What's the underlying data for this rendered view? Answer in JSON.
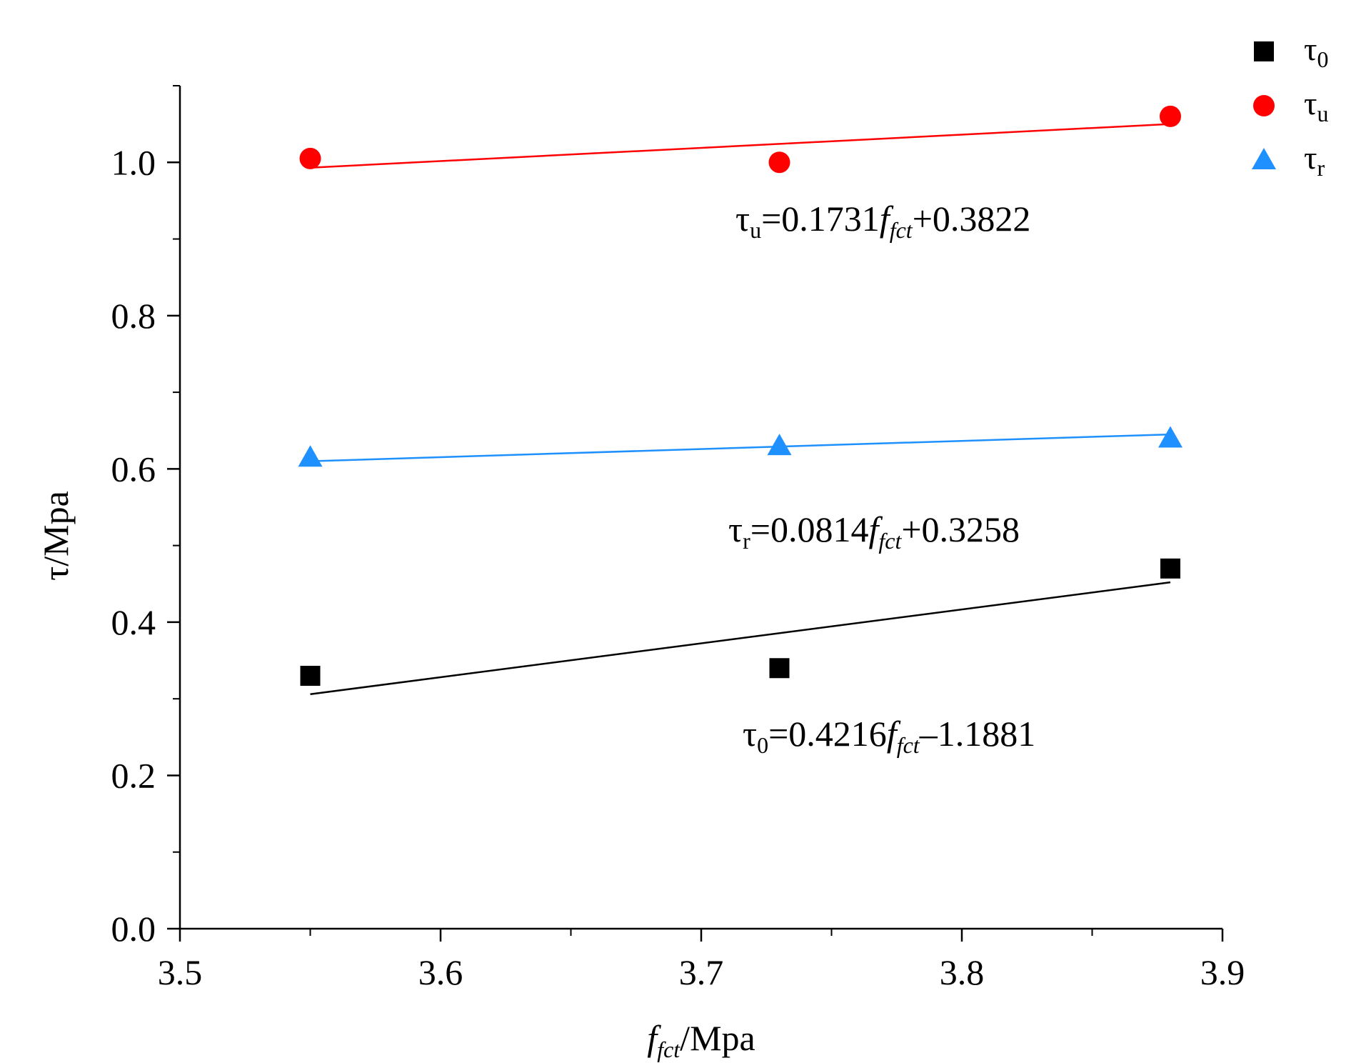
{
  "chart_data": {
    "type": "scatter",
    "xlabel": {
      "symbol": "f",
      "sub": "fct",
      "unit": "/Mpa"
    },
    "ylabel": "τ/Mpa",
    "xlim": [
      3.5,
      3.9
    ],
    "ylim": [
      0.0,
      1.1
    ],
    "x_ticks": [
      3.5,
      3.6,
      3.7,
      3.8,
      3.9
    ],
    "x_tick_labels": [
      "3.5",
      "3.6",
      "3.7",
      "3.8",
      "3.9"
    ],
    "y_ticks": [
      0.0,
      0.2,
      0.4,
      0.6,
      0.8,
      1.0
    ],
    "y_tick_labels": [
      "0.0",
      "0.2",
      "0.4",
      "0.6",
      "0.8",
      "1.0"
    ],
    "legend_position": "top-right",
    "series": [
      {
        "id": "tau0",
        "name": "τ",
        "name_sub": "0",
        "marker": "square",
        "color": "#000000",
        "x": [
          3.55,
          3.73,
          3.88
        ],
        "y": [
          0.33,
          0.34,
          0.47
        ],
        "fit_slope": 0.4216,
        "fit_intercept": -1.1881,
        "fit_x_range": [
          3.55,
          3.88
        ],
        "equation": {
          "lhs": "τ",
          "lhs_sub": "0",
          "coef": "=0.4216",
          "var": "f",
          "var_sub": "fct",
          "rest": "–1.1881"
        }
      },
      {
        "id": "tauu",
        "name": "τ",
        "name_sub": "u",
        "marker": "circle",
        "color": "#ff0000",
        "x": [
          3.55,
          3.73,
          3.88
        ],
        "y": [
          1.005,
          1.0,
          1.06
        ],
        "fit_slope": 0.1731,
        "fit_intercept": 0.3822,
        "fit_x_range": [
          3.55,
          3.88
        ],
        "equation": {
          "lhs": "τ",
          "lhs_sub": "u",
          "coef": "=0.1731",
          "var": "f",
          "var_sub": "fct",
          "rest": "+0.3822"
        }
      },
      {
        "id": "taur",
        "name": "τ",
        "name_sub": "r",
        "marker": "triangle",
        "color": "#1e90ff",
        "x": [
          3.55,
          3.73,
          3.88
        ],
        "y": [
          0.615,
          0.63,
          0.64
        ],
        "fit_slope": 0.0814,
        "fit_intercept": 0.3258,
        "fit_x_range": [
          3.55,
          3.88
        ],
        "equation": {
          "lhs": "τ",
          "lhs_sub": "r",
          "coef": "=0.0814",
          "var": "f",
          "var_sub": "fct",
          "rest": "+0.3258"
        }
      }
    ]
  }
}
